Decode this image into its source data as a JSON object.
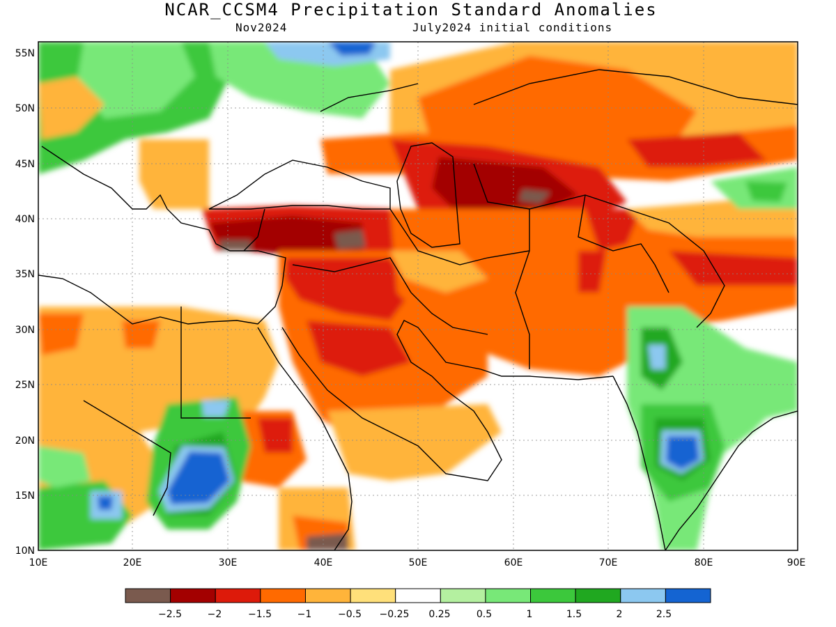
{
  "header": {
    "title": "NCAR_CCSM4 Precipitation Standard Anomalies",
    "month": "Nov2024",
    "initial": "July2024 initial conditions"
  },
  "lat_labels": [
    "55N",
    "50N",
    "45N",
    "40N",
    "35N",
    "30N",
    "25N",
    "20N",
    "15N",
    "10N"
  ],
  "lon_labels": [
    "10E",
    "20E",
    "30E",
    "40E",
    "50E",
    "60E",
    "70E",
    "80E",
    "90E"
  ],
  "colorbar": {
    "colors": [
      "#7a5a4e",
      "#a30000",
      "#dd1a0a",
      "#ff6a00",
      "#ffb43a",
      "#ffe07a",
      "#ffffff",
      "#b4f0a0",
      "#78e878",
      "#3cc83c",
      "#20a820",
      "#8cc8f0",
      "#1464d2"
    ],
    "labels": [
      "−2.5",
      "−2",
      "−1.5",
      "−1",
      "−0.5",
      "−0.25",
      "0.25",
      "0.5",
      "1",
      "1.5",
      "2",
      "2.5"
    ]
  }
}
